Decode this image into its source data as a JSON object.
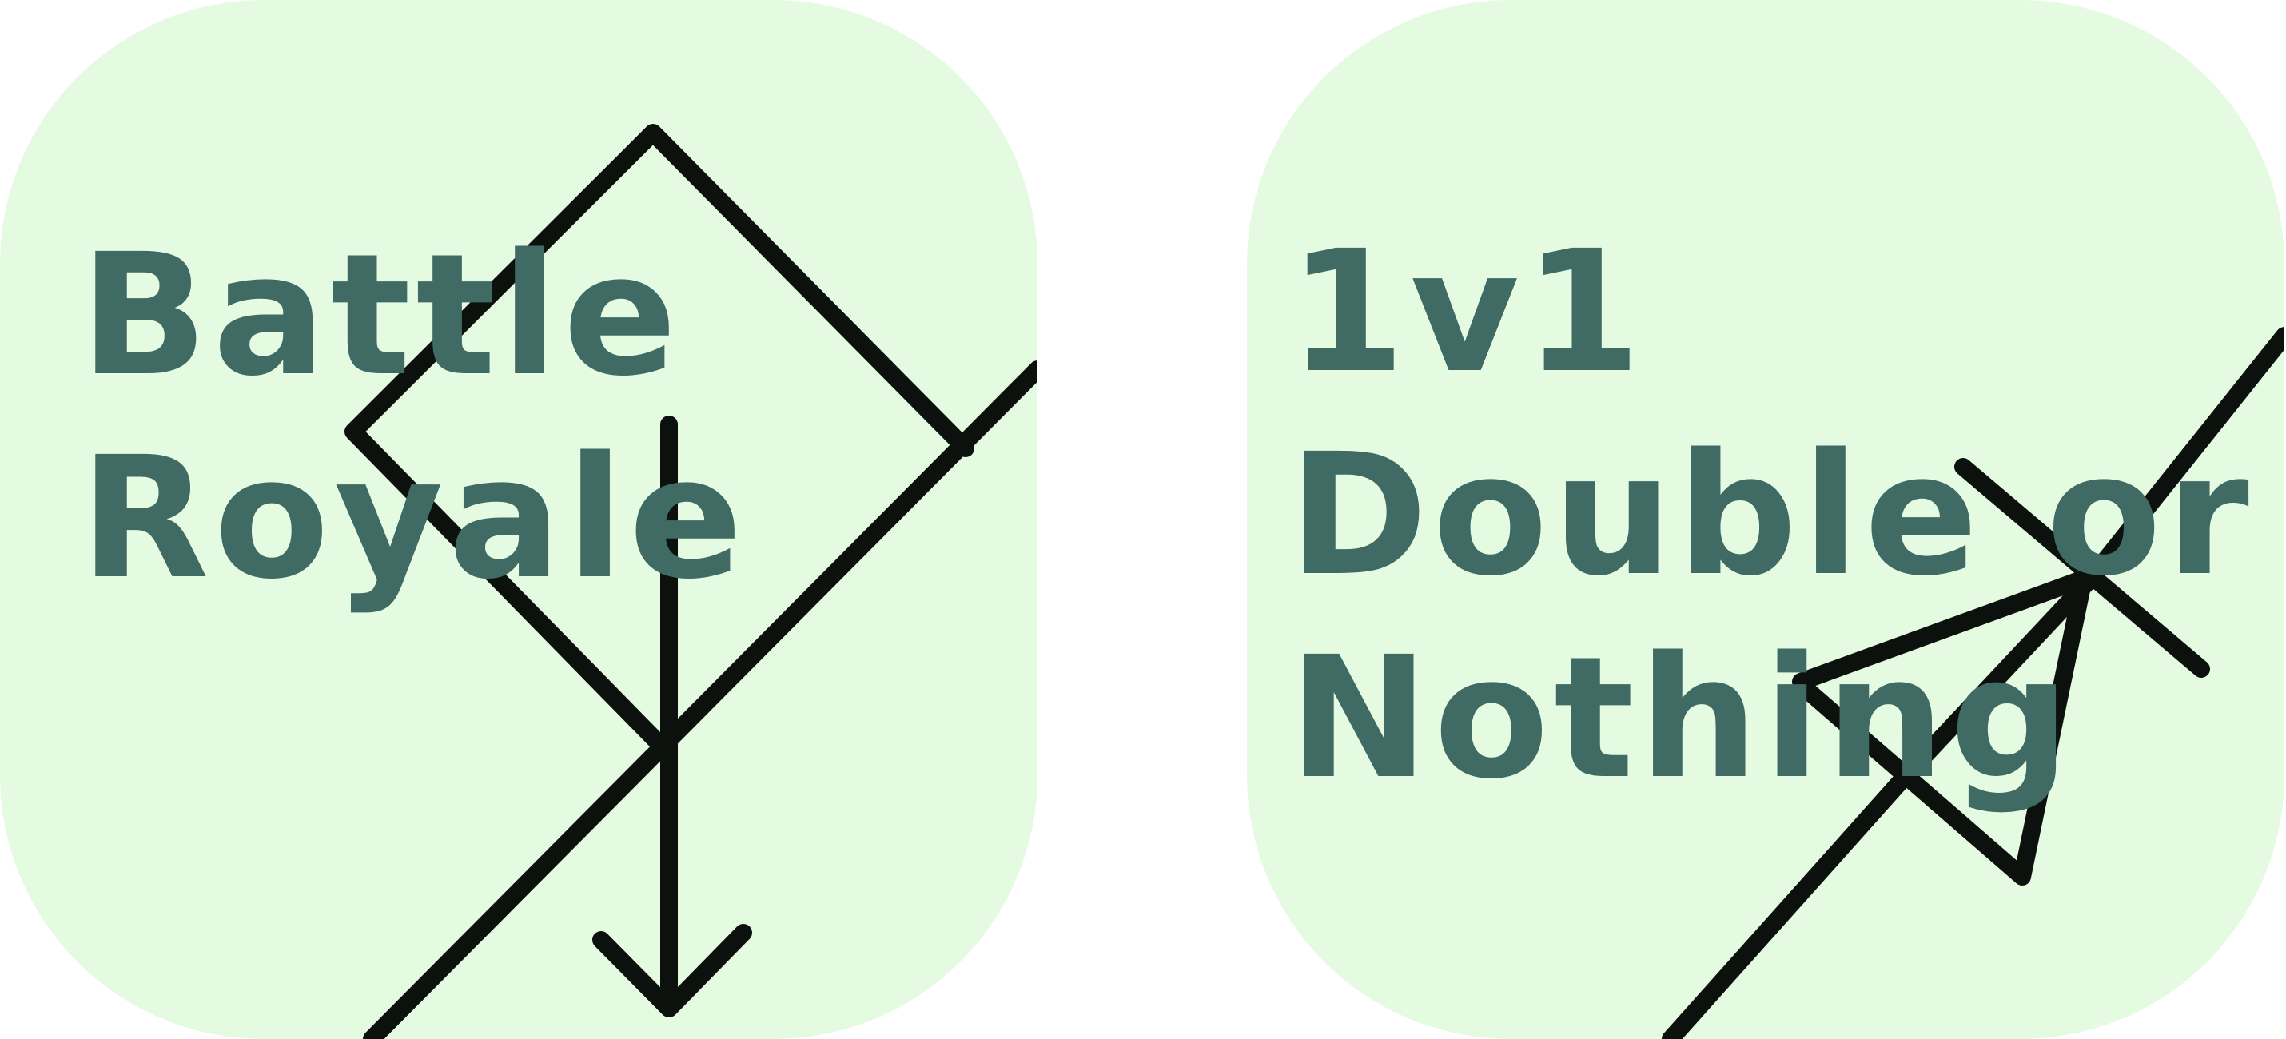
{
  "theme": {
    "tile_background": "#e4fbe1",
    "title_color": "#406b64",
    "line_color": "#0c110d"
  },
  "tiles": [
    {
      "id": "battle-royale",
      "title_lines": [
        "Battle",
        "Royale"
      ],
      "icon": "diamond-down-arrow-graphic"
    },
    {
      "id": "double-or-nothing",
      "title_lines": [
        "1v1",
        "Double or",
        "Nothing"
      ],
      "icon": "zigzag-up-arrow-graphic"
    }
  ]
}
